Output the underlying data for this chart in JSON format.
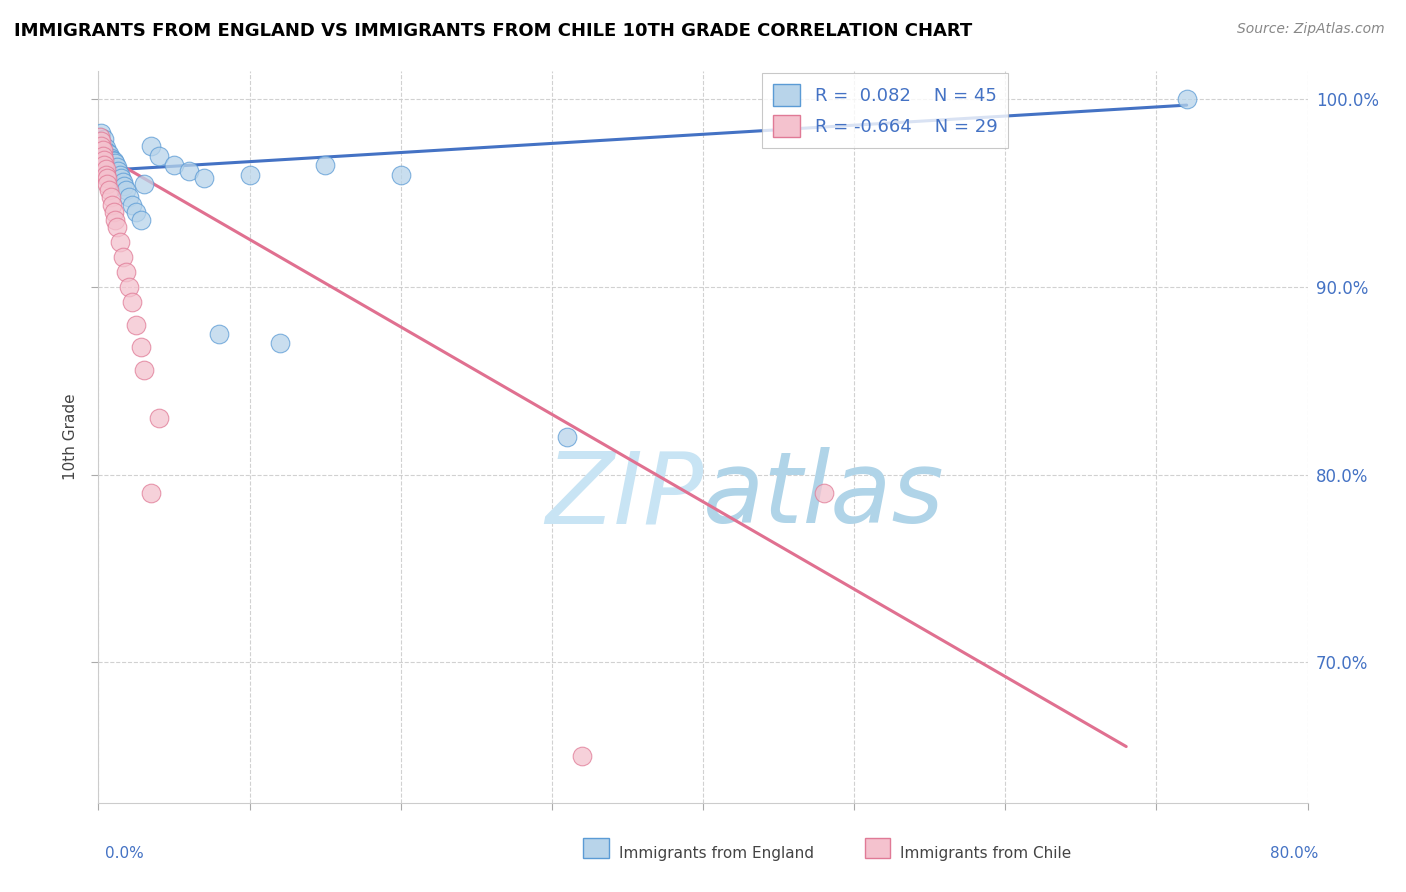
{
  "title": "IMMIGRANTS FROM ENGLAND VS IMMIGRANTS FROM CHILE 10TH GRADE CORRELATION CHART",
  "source": "Source: ZipAtlas.com",
  "ylabel": "10th Grade",
  "england_R": 0.082,
  "england_N": 45,
  "chile_R": -0.664,
  "chile_N": 29,
  "england_color": "#b8d4ea",
  "england_edge_color": "#5b9bd5",
  "chile_color": "#f4c2ce",
  "chile_edge_color": "#e07a96",
  "england_line_color": "#4472c4",
  "chile_line_color": "#e07090",
  "watermark_color": "#daeef8",
  "background_color": "#ffffff",
  "england_scatter_x": [
    0.001,
    0.002,
    0.002,
    0.003,
    0.003,
    0.004,
    0.004,
    0.005,
    0.005,
    0.006,
    0.006,
    0.007,
    0.007,
    0.008,
    0.008,
    0.009,
    0.009,
    0.01,
    0.01,
    0.011,
    0.011,
    0.012,
    0.013,
    0.014,
    0.015,
    0.016,
    0.017,
    0.018,
    0.02,
    0.022,
    0.025,
    0.028,
    0.03,
    0.035,
    0.04,
    0.05,
    0.06,
    0.07,
    0.08,
    0.1,
    0.12,
    0.15,
    0.2,
    0.31,
    0.72
  ],
  "england_scatter_y": [
    0.98,
    0.982,
    0.978,
    0.976,
    0.973,
    0.979,
    0.971,
    0.974,
    0.969,
    0.972,
    0.967,
    0.971,
    0.966,
    0.969,
    0.964,
    0.968,
    0.963,
    0.967,
    0.962,
    0.966,
    0.961,
    0.964,
    0.962,
    0.96,
    0.958,
    0.956,
    0.954,
    0.952,
    0.948,
    0.944,
    0.94,
    0.936,
    0.955,
    0.975,
    0.97,
    0.965,
    0.962,
    0.958,
    0.875,
    0.96,
    0.87,
    0.965,
    0.96,
    0.82,
    1.0
  ],
  "chile_scatter_x": [
    0.001,
    0.002,
    0.002,
    0.003,
    0.003,
    0.004,
    0.004,
    0.005,
    0.005,
    0.006,
    0.006,
    0.007,
    0.008,
    0.009,
    0.01,
    0.011,
    0.012,
    0.014,
    0.016,
    0.018,
    0.02,
    0.022,
    0.025,
    0.028,
    0.03,
    0.035,
    0.04,
    0.32,
    0.48
  ],
  "chile_scatter_y": [
    0.98,
    0.978,
    0.975,
    0.973,
    0.97,
    0.968,
    0.965,
    0.963,
    0.96,
    0.958,
    0.955,
    0.952,
    0.948,
    0.944,
    0.94,
    0.936,
    0.932,
    0.924,
    0.916,
    0.908,
    0.9,
    0.892,
    0.88,
    0.868,
    0.856,
    0.79,
    0.83,
    0.65,
    0.79
  ],
  "england_trend_x": [
    0.0,
    0.72
  ],
  "england_trend_y": [
    0.962,
    0.997
  ],
  "chile_trend_x": [
    0.0,
    0.68
  ],
  "chile_trend_y": [
    0.972,
    0.655
  ],
  "xlim": [
    0.0,
    0.8
  ],
  "ylim": [
    0.625,
    1.015
  ],
  "yticks": [
    0.7,
    0.8,
    0.9,
    1.0
  ],
  "ytick_labels": [
    "70.0%",
    "80.0%",
    "90.0%",
    "100.0%"
  ]
}
